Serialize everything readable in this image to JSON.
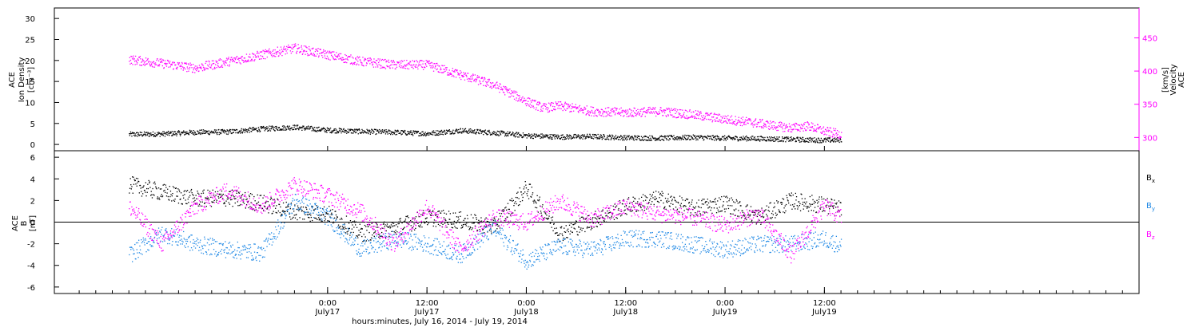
{
  "chart_data": [
    {
      "type": "scatter",
      "panel": "top",
      "left_axis": {
        "label_lines": [
          "ACE",
          "Ion Density",
          "[cm⁻³]"
        ],
        "ticks": [
          0,
          5,
          10,
          15,
          20,
          25,
          30
        ],
        "ylim": [
          -1.5,
          32.5
        ]
      },
      "right_axis": {
        "label_lines": [
          "ACE",
          "Velocity",
          "[km/s]"
        ],
        "ticks": [
          300,
          350,
          400,
          450
        ],
        "ylim": [
          280,
          495
        ],
        "color": "#ff00ff"
      },
      "series": [
        {
          "axis": "left",
          "color": "#000000",
          "x_hours": [
            -24,
            -20,
            -16,
            -12,
            -8,
            -4,
            0,
            4,
            8,
            12,
            16,
            20,
            24,
            28,
            32,
            36,
            40,
            44,
            48,
            52,
            56,
            60,
            62
          ],
          "values": [
            2.5,
            2.6,
            3.0,
            3.1,
            3.8,
            4.2,
            3.5,
            3.2,
            3.0,
            2.7,
            3.4,
            2.9,
            2.2,
            1.9,
            2.0,
            1.7,
            1.6,
            1.8,
            1.6,
            1.5,
            1.3,
            1.1,
            1.2
          ]
        },
        {
          "axis": "right",
          "color": "#ff00ff",
          "x_hours": [
            -24,
            -20,
            -16,
            -12,
            -8,
            -4,
            0,
            4,
            8,
            12,
            16,
            20,
            24,
            26,
            28,
            32,
            36,
            40,
            44,
            48,
            52,
            54,
            56,
            58,
            60,
            62
          ],
          "values": [
            418,
            412,
            405,
            415,
            425,
            435,
            425,
            415,
            410,
            410,
            395,
            380,
            355,
            345,
            348,
            340,
            338,
            340,
            335,
            328,
            322,
            318,
            315,
            318,
            310,
            305
          ]
        }
      ]
    },
    {
      "type": "scatter",
      "panel": "bottom",
      "ylabel_lines": [
        "ACE",
        "B",
        "[nT]"
      ],
      "ticks": [
        -6,
        -4,
        -2,
        0,
        2,
        4,
        6
      ],
      "ylim": [
        -6.6,
        6.6
      ],
      "zero_line": true,
      "legend": [
        {
          "name": "Bx",
          "color": "#000000"
        },
        {
          "name": "By",
          "color": "#1e88e5"
        },
        {
          "name": "Bz",
          "color": "#ff00ff"
        }
      ],
      "series": [
        {
          "name": "Bx",
          "color": "#000000",
          "x_hours": [
            -24,
            -20,
            -16,
            -12,
            -8,
            -4,
            0,
            4,
            8,
            12,
            16,
            20,
            24,
            28,
            32,
            36,
            40,
            44,
            48,
            52,
            56,
            60,
            62
          ],
          "values": [
            3.5,
            2.8,
            2.2,
            2.3,
            1.8,
            1.0,
            0.8,
            -1.0,
            -0.5,
            0.5,
            0.2,
            -0.4,
            3.2,
            -1.0,
            0.2,
            1.5,
            2.2,
            1.3,
            1.8,
            0.5,
            2.0,
            1.6,
            1.2
          ]
        },
        {
          "name": "By",
          "color": "#1e88e5",
          "x_hours": [
            -24,
            -20,
            -16,
            -12,
            -8,
            -4,
            0,
            4,
            8,
            12,
            16,
            20,
            24,
            28,
            32,
            36,
            40,
            44,
            48,
            52,
            56,
            60,
            62
          ],
          "values": [
            -3.0,
            -1.0,
            -2.0,
            -2.5,
            -2.8,
            2.0,
            0.5,
            -2.5,
            -1.5,
            -2.0,
            -3.0,
            -0.5,
            -3.5,
            -2.2,
            -2.5,
            -1.5,
            -1.5,
            -2.0,
            -2.5,
            -2.0,
            -2.0,
            -1.5,
            -2.2
          ]
        },
        {
          "name": "Bz",
          "color": "#ff00ff",
          "x_hours": [
            -24,
            -20,
            -16,
            -12,
            -8,
            -4,
            0,
            4,
            8,
            12,
            16,
            20,
            24,
            28,
            32,
            36,
            40,
            44,
            48,
            52,
            56,
            60,
            62
          ],
          "values": [
            1.5,
            -2.0,
            1.5,
            3.0,
            1.5,
            3.5,
            2.5,
            1.0,
            -2.0,
            1.5,
            -2.5,
            0.5,
            0.0,
            2.0,
            0.3,
            1.5,
            0.8,
            0.5,
            -0.3,
            0.8,
            -3.0,
            1.5,
            0.5
          ]
        }
      ],
      "x_axis": {
        "xlim_hours": [
          -33,
          98
        ],
        "tick_labels": [
          {
            "hour": 0,
            "time": "0:00",
            "date": "July17"
          },
          {
            "hour": 12,
            "time": "12:00",
            "date": "July17"
          },
          {
            "hour": 24,
            "time": "0:00",
            "date": "July18"
          },
          {
            "hour": 36,
            "time": "12:00",
            "date": "July18"
          },
          {
            "hour": 48,
            "time": "0:00",
            "date": "July19"
          },
          {
            "hour": 60,
            "time": "12:00",
            "date": "July19"
          }
        ],
        "xlabel": "hours:minutes, July 16, 2014 - July 19, 2014"
      }
    }
  ]
}
